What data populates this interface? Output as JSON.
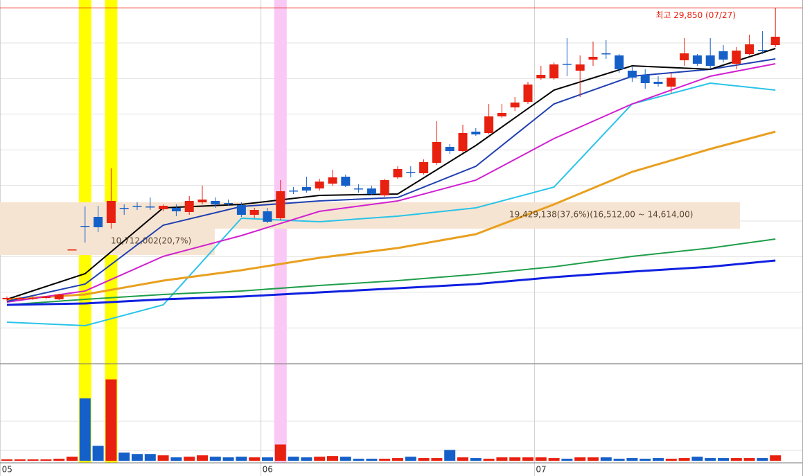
{
  "chart_data": {
    "type": "candlestick",
    "max_label": "최고 29,850 (07/27)",
    "annotations": [
      {
        "text": "10,712,002(20,7%)",
        "index": 8
      },
      {
        "text": "19,429,138(37,6%)(16,512,00 ~ 14,614,00)",
        "index": 38
      }
    ],
    "date_labels": [
      {
        "index": 0,
        "label": "05"
      },
      {
        "index": 20,
        "label": "06"
      },
      {
        "index": 41,
        "label": "07"
      }
    ],
    "ylim": [
      5200,
      30400
    ],
    "vlim": [
      0,
      140
    ],
    "up_color": "#e8200f",
    "down_color": "#1560c8",
    "highlights": [
      {
        "index": 6,
        "color": "#ffff00"
      },
      {
        "index": 8,
        "color": "#ffff00"
      },
      {
        "index": 21,
        "color": "#f9c8f5"
      }
    ],
    "open": [
      9664,
      9664,
      9712,
      9760,
      9664,
      13120,
      14752,
      15376,
      14944,
      16000,
      16144,
      16096,
      15904,
      16000,
      15712,
      16384,
      16480,
      16336,
      16192,
      15520,
      15760,
      15280,
      17200,
      17440,
      17344,
      17680,
      18160,
      17344,
      17344,
      16864,
      18112,
      18496,
      18400,
      19120,
      20224,
      19936,
      21280,
      21184,
      22336,
      22960,
      23344,
      24976,
      24976,
      25984,
      25504,
      26272,
      26704,
      26560,
      25504,
      25216,
      24736,
      24400,
      26224,
      26560,
      26560,
      26848,
      25984,
      26656,
      26944,
      27280
    ],
    "high": [
      9856,
      9856,
      9856,
      9904,
      10048,
      13120,
      16096,
      16144,
      18736,
      16240,
      16384,
      16720,
      16240,
      16240,
      16816,
      17536,
      16720,
      16576,
      16384,
      16000,
      16000,
      17920,
      17440,
      18160,
      18016,
      18640,
      18304,
      17632,
      17536,
      18016,
      18880,
      18880,
      19360,
      22000,
      20416,
      21760,
      21520,
      23200,
      23200,
      23680,
      24736,
      25840,
      26080,
      27760,
      26560,
      27520,
      27616,
      26656,
      25840,
      25600,
      25120,
      25360,
      27760,
      26656,
      27760,
      27280,
      27136,
      28000,
      28240,
      29850
    ],
    "low": [
      9520,
      9568,
      9616,
      9664,
      9616,
      13120,
      13600,
      14320,
      14560,
      15520,
      15856,
      15856,
      15760,
      15424,
      15520,
      16240,
      16000,
      16144,
      15376,
      15280,
      14944,
      15136,
      16960,
      17056,
      17200,
      17536,
      17440,
      17056,
      16864,
      16768,
      18016,
      18112,
      18304,
      18976,
      19744,
      19840,
      20992,
      21088,
      22240,
      22720,
      23200,
      24880,
      24880,
      25120,
      23680,
      25840,
      26320,
      25360,
      24736,
      24256,
      24400,
      23920,
      25840,
      25840,
      25600,
      26080,
      25600,
      26560,
      26656,
      27136
    ],
    "close": [
      9760,
      9760,
      9760,
      9856,
      10000,
      13120,
      14752,
      14656,
      16480,
      16000,
      16144,
      16048,
      16144,
      15760,
      16480,
      16576,
      16240,
      16336,
      15520,
      15856,
      15040,
      17152,
      17200,
      17200,
      17824,
      18112,
      17536,
      17344,
      16960,
      17920,
      18688,
      18496,
      19168,
      20560,
      19936,
      21184,
      21088,
      22336,
      22576,
      23296,
      24544,
      25216,
      25936,
      25984,
      25936,
      26464,
      26704,
      25600,
      25024,
      24640,
      24592,
      25024,
      26704,
      25984,
      25840,
      26272,
      26896,
      27328,
      26944,
      27856
    ],
    "volume": [
      2,
      2,
      2,
      2,
      3,
      6,
      92,
      22,
      120,
      12,
      10,
      10,
      8,
      5,
      6,
      8,
      6,
      5,
      6,
      5,
      5,
      24,
      6,
      5,
      6,
      7,
      6,
      3,
      3,
      3,
      4,
      6,
      4,
      4,
      16,
      5,
      4,
      3,
      5,
      5,
      5,
      5,
      4,
      3,
      5,
      5,
      5,
      3,
      4,
      3,
      4,
      3,
      4,
      6,
      4,
      4,
      4,
      4,
      4,
      8
    ],
    "lines": [
      {
        "color": "#29c3e8",
        "width": 2,
        "x": [
          0,
          6,
          12,
          18,
          24,
          30,
          36,
          42,
          48,
          54,
          59
        ],
        "values": [
          8080,
          7840,
          9280,
          15280,
          15040,
          15424,
          16000,
          17440,
          23200,
          24640,
          24160
        ]
      },
      {
        "color": "#1f9e4a",
        "width": 2,
        "x": [
          0,
          6,
          12,
          18,
          24,
          30,
          36,
          42,
          48,
          54,
          59
        ],
        "values": [
          9280,
          9664,
          10000,
          10240,
          10624,
          10960,
          11392,
          11920,
          12640,
          13216,
          13840
        ]
      },
      {
        "color": "#1020e0",
        "width": 3,
        "x": [
          0,
          6,
          12,
          18,
          24,
          30,
          36,
          42,
          48,
          54,
          59
        ],
        "values": [
          9280,
          9376,
          9664,
          9856,
          10144,
          10432,
          10720,
          11200,
          11584,
          11920,
          12352
        ]
      },
      {
        "color": "#e8a020",
        "width": 3,
        "x": [
          0,
          6,
          12,
          18,
          24,
          30,
          36,
          42,
          48,
          54,
          59
        ],
        "values": [
          9664,
          10000,
          10960,
          11680,
          12544,
          13216,
          14176,
          16240,
          18496,
          20080,
          21280
        ]
      },
      {
        "color": "#d020d0",
        "width": 2,
        "x": [
          0,
          6,
          12,
          18,
          24,
          30,
          36,
          42,
          48,
          54,
          59
        ],
        "values": [
          9472,
          10240,
          12640,
          14080,
          15760,
          16480,
          17920,
          20800,
          23200,
          25120,
          25984
        ]
      },
      {
        "color": "#2040b0",
        "width": 2,
        "x": [
          0,
          6,
          12,
          18,
          24,
          30,
          36,
          42,
          48,
          54,
          59
        ],
        "values": [
          9520,
          10720,
          14800,
          16096,
          16480,
          16720,
          18880,
          23200,
          25120,
          25600,
          26320
        ]
      },
      {
        "color": "#000000",
        "width": 2,
        "x": [
          0,
          6,
          12,
          18,
          24,
          30,
          36,
          42,
          48,
          54,
          59
        ],
        "values": [
          9664,
          11440,
          16000,
          16240,
          16864,
          16960,
          20320,
          24160,
          25840,
          25600,
          27040
        ]
      }
    ]
  }
}
